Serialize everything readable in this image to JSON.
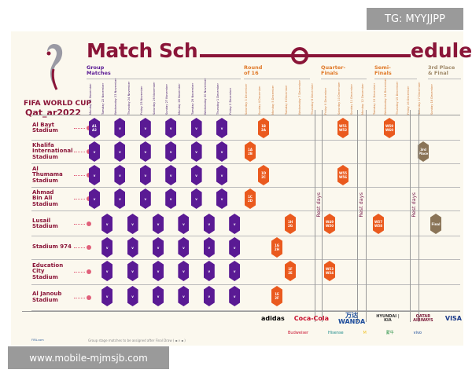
{
  "title": {
    "left": "Match Sch",
    "right": "edule"
  },
  "logo": {
    "line1": "FIFA WORLD CUP",
    "line2": "Qat_ar2022"
  },
  "phases": [
    {
      "label": "Group\nMatches",
      "color": "#5a1a94"
    },
    {
      "label": "Round\nof 16",
      "color": "#e07a2a"
    },
    {
      "label": "Quarter-\nFinals",
      "color": "#e07a2a"
    },
    {
      "label": "Semi-\nFinals",
      "color": "#e07a2a"
    },
    {
      "label": "3rd Place\n& Final",
      "color": "#a08a6a"
    }
  ],
  "dates": [
    "Monday 21 November",
    "Tuesday 22 November",
    "Wednesday 23 November",
    "Thursday 24 November",
    "Friday 25 November",
    "Saturday 26 November",
    "Sunday 27 November",
    "Monday 28 November",
    "Tuesday 29 November",
    "Wednesday 30 November",
    "Thursday 1 December",
    "Friday 2 December",
    "Saturday 3 December",
    "Sunday 4 December",
    "Monday 5 December",
    "Tuesday 6 December",
    "Wednesday 7 December",
    "Thursday 8 December",
    "Friday 9 December",
    "Saturday 10 December",
    "Sunday 11 December",
    "Monday 12 December",
    "Tuesday 13 December",
    "Wednesday 14 December",
    "Thursday 15 December",
    "Friday 16 December",
    "Saturday 17 December",
    "Sunday 18 December"
  ],
  "stadiums": [
    {
      "name": "Al Bayt\nStadium",
      "group_parity": "odd",
      "first": "A1\nA2",
      "ko": [
        {
          "day": 13,
          "t": "1B\n2A"
        },
        {
          "day": 19,
          "t": "W51\nW52"
        },
        {
          "day": 23,
          "t": "W59\nW60"
        }
      ]
    },
    {
      "name": "Khalifa\nInternational\nStadium",
      "group_parity": "odd",
      "ko": [
        {
          "day": 12,
          "t": "1A\n2B"
        },
        {
          "day": 26,
          "t": "3rd\nPlace",
          "final": true
        }
      ]
    },
    {
      "name": "Al\nThumama\nStadium",
      "group_parity": "odd",
      "ko": [
        {
          "day": 13,
          "t": "1D\n2C"
        },
        {
          "day": 19,
          "t": "W55\nW56"
        }
      ]
    },
    {
      "name": "Ahmad\nBin Ali\nStadium",
      "group_parity": "odd",
      "ko": [
        {
          "day": 12,
          "t": "1C\n2D"
        }
      ]
    },
    {
      "name": "Lusail\nStadium",
      "group_parity": "even",
      "ko": [
        {
          "day": 15,
          "t": "1H\n2G"
        },
        {
          "day": 18,
          "t": "W49\nW50"
        },
        {
          "day": 22,
          "t": "W57\nW58"
        },
        {
          "day": 27,
          "t": "Final",
          "final": true
        }
      ]
    },
    {
      "name": "Stadium 974",
      "group_parity": "even",
      "ko": [
        {
          "day": 14,
          "t": "1G\n2H"
        }
      ]
    },
    {
      "name": "Education\nCity\nStadium",
      "group_parity": "even",
      "ko": [
        {
          "day": 15,
          "t": "1F\n2E"
        },
        {
          "day": 18,
          "t": "W53\nW54"
        }
      ]
    },
    {
      "name": "Al Janoub\nStadium",
      "group_parity": "even",
      "ko": [
        {
          "day": 14,
          "t": "1E\n2F"
        }
      ]
    }
  ],
  "rest_label": "Rest days",
  "group_match_label": "v",
  "footer": {
    "note": "Group stage matches to be assigned after Final Draw ( ▪ v ▪ )",
    "fifa": "FIFA.com"
  },
  "sponsors": [
    "adidas",
    "Coca-Cola",
    "万达 WANDA",
    "HYUNDAI | KIA",
    "QATAR AIRWAYS",
    "VISA"
  ],
  "sponsors2": [
    "Budweiser",
    "Hisense",
    "M",
    "蒙牛",
    "vivo"
  ],
  "watermarks": {
    "top": "TG: MYYJJPP",
    "bottom": "www.mobile-mjmsjb.com"
  },
  "colors": {
    "title": "#8a1538",
    "group": "#5a1a94",
    "knockout": "#ea5a1e",
    "final": "#8a7457",
    "background": "#fbf8ee"
  }
}
